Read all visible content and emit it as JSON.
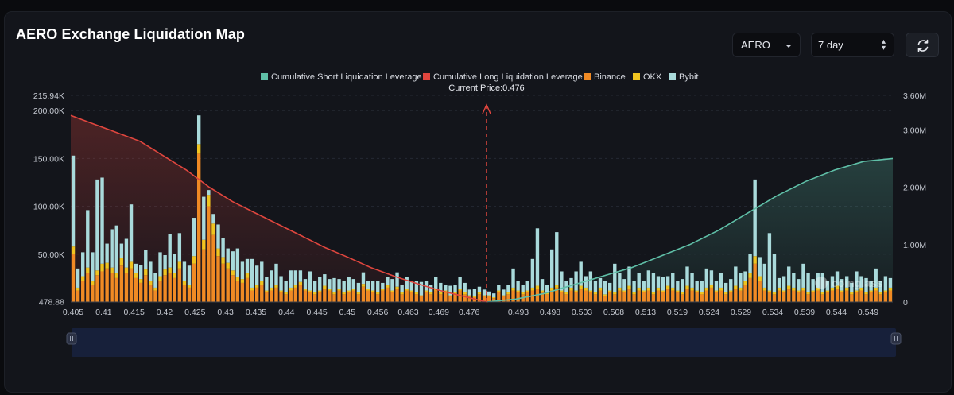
{
  "header": {
    "title": "AERO Exchange Liquidation Map",
    "symbol_select": "AERO",
    "range_select": "7 day"
  },
  "colors": {
    "short_line": "#5fbfa7",
    "long_line": "#e0463e",
    "binance": "#f08a24",
    "okx": "#f0c420",
    "bybit": "#a9dadb"
  },
  "chart_data": {
    "type": "bar",
    "legend": [
      {
        "key": "short",
        "label": "Cumulative Short Liquidation Leverage"
      },
      {
        "key": "long",
        "label": "Cumulative Long Liquidation Leverage"
      },
      {
        "key": "binance",
        "label": "Binance"
      },
      {
        "key": "okx",
        "label": "OKX"
      },
      {
        "key": "bybit",
        "label": "Bybit"
      }
    ],
    "current_price_label": "Current Price:0.476",
    "current_price": 0.476,
    "y_left": {
      "min": 478.88,
      "max": 215940,
      "ticks": [
        "478.88",
        "50.00K",
        "100.00K",
        "150.00K",
        "200.00K",
        "215.94K"
      ]
    },
    "y_right": {
      "min": 0,
      "max": 3600000,
      "ticks": [
        "0",
        "1.00M",
        "2.00M",
        "3.00M",
        "3.60M"
      ]
    },
    "x_tick_labels": [
      "0.405",
      "0.41",
      "0.415",
      "0.42",
      "0.425",
      "0.43",
      "0.435",
      "0.44",
      "0.445",
      "0.45",
      "0.456",
      "0.463",
      "0.469",
      "0.476",
      "0.493",
      "0.498",
      "0.503",
      "0.508",
      "0.513",
      "0.519",
      "0.524",
      "0.529",
      "0.534",
      "0.539",
      "0.544",
      "0.549"
    ],
    "long_tick_count": 14,
    "bar_count": 170,
    "bars_per_tick": 6.3,
    "bars_long_side": 88,
    "bars": {
      "binance": [
        50000,
        12000,
        22000,
        30000,
        18000,
        28000,
        32000,
        35000,
        30000,
        25000,
        38000,
        30000,
        35000,
        25000,
        20000,
        28000,
        18000,
        12000,
        22000,
        28000,
        30000,
        25000,
        35000,
        18000,
        15000,
        40000,
        155000,
        55000,
        100000,
        70000,
        48000,
        40000,
        35000,
        28000,
        22000,
        20000,
        25000,
        12000,
        15000,
        18000,
        10000,
        12000,
        15000,
        10000,
        8000,
        12000,
        15000,
        18000,
        12000,
        10000,
        8000,
        10000,
        14000,
        12000,
        8000,
        12000,
        8000,
        10000,
        12000,
        8000,
        16000,
        12000,
        10000,
        8000,
        12000,
        15000,
        10000,
        14000,
        8000,
        12000,
        10000,
        8000,
        6000,
        10000,
        8000,
        12000,
        8000,
        10000,
        6000,
        8000,
        12000,
        8000,
        6000,
        5000,
        8000,
        6000,
        6000,
        4000,
        10000,
        6000,
        8000,
        12000,
        10000,
        8000,
        10000,
        12000,
        14000,
        10000,
        8000,
        12000,
        15000,
        10000,
        8000,
        12000,
        10000,
        14000,
        12000,
        10000,
        8000,
        12000,
        6000,
        10000,
        8000,
        12000,
        10000,
        14000,
        8000,
        12000,
        10000,
        12000,
        8000,
        12000,
        10000,
        14000,
        12000,
        10000,
        8000,
        14000,
        12000,
        10000,
        8000,
        12000,
        15000,
        10000,
        12000,
        8000,
        10000,
        14000,
        12000,
        18000,
        25000,
        40000,
        22000,
        12000,
        10000,
        8000,
        12000,
        10000,
        14000,
        12000,
        10000,
        12000,
        8000,
        10000,
        12000,
        8000,
        10000,
        12000,
        14000,
        10000,
        12000,
        8000,
        10000,
        12000,
        8000,
        10000,
        12000,
        8000,
        10000,
        12000
      ],
      "okx": [
        8000,
        3000,
        5000,
        6000,
        4000,
        5000,
        8000,
        6000,
        6000,
        5000,
        8000,
        6000,
        7000,
        5000,
        4000,
        6000,
        4000,
        3000,
        5000,
        6000,
        6000,
        5000,
        7000,
        4000,
        3000,
        8000,
        10000,
        10000,
        12000,
        12000,
        8000,
        7000,
        6000,
        5000,
        4000,
        4000,
        5000,
        3000,
        3000,
        4000,
        2000,
        3000,
        3000,
        2000,
        2000,
        3000,
        3000,
        3000,
        2000,
        2000,
        2000,
        2000,
        3000,
        2000,
        2000,
        2000,
        2000,
        2000,
        2000,
        2000,
        3000,
        2000,
        2000,
        2000,
        2000,
        3000,
        2000,
        2000,
        2000,
        2000,
        2000,
        2000,
        1000,
        2000,
        2000,
        2000,
        2000,
        2000,
        1000,
        2000,
        2000,
        2000,
        1000,
        1000,
        2000,
        1000,
        1000,
        1000,
        2000,
        1000,
        2000,
        3000,
        2000,
        2000,
        2000,
        3000,
        3000,
        2000,
        2000,
        3000,
        3000,
        2000,
        2000,
        3000,
        2000,
        3000,
        3000,
        2000,
        2000,
        3000,
        2000,
        2000,
        2000,
        3000,
        2000,
        3000,
        2000,
        3000,
        2000,
        3000,
        2000,
        3000,
        2000,
        3000,
        3000,
        2000,
        2000,
        3000,
        3000,
        2000,
        2000,
        3000,
        3000,
        2000,
        3000,
        2000,
        2000,
        3000,
        3000,
        4000,
        5000,
        8000,
        5000,
        3000,
        2000,
        2000,
        3000,
        2000,
        3000,
        3000,
        2000,
        3000,
        2000,
        2000,
        3000,
        2000,
        2000,
        3000,
        3000,
        2000,
        3000,
        2000,
        2000,
        3000,
        2000,
        2000,
        3000,
        2000,
        2000,
        3000
      ],
      "bybit": [
        95000,
        20000,
        25000,
        60000,
        30000,
        95000,
        90000,
        20000,
        40000,
        50000,
        15000,
        30000,
        60000,
        10000,
        15000,
        20000,
        20000,
        15000,
        25000,
        15000,
        35000,
        20000,
        30000,
        20000,
        20000,
        40000,
        30000,
        45000,
        5000,
        10000,
        25000,
        20000,
        15000,
        20000,
        30000,
        18000,
        15000,
        30000,
        20000,
        20000,
        14000,
        18000,
        22000,
        15000,
        12000,
        18000,
        15000,
        12000,
        10000,
        20000,
        12000,
        14000,
        12000,
        10000,
        15000,
        10000,
        12000,
        14000,
        10000,
        10000,
        12000,
        8000,
        10000,
        12000,
        6000,
        8000,
        12000,
        15000,
        8000,
        12000,
        10000,
        12000,
        14000,
        10000,
        8000,
        12000,
        10000,
        6000,
        10000,
        8000,
        12000,
        10000,
        6000,
        8000,
        6000,
        6000,
        4000,
        4000,
        6000,
        6000,
        8000,
        20000,
        10000,
        8000,
        10000,
        30000,
        60000,
        12000,
        8000,
        40000,
        55000,
        20000,
        12000,
        10000,
        20000,
        25000,
        12000,
        20000,
        12000,
        10000,
        14000,
        8000,
        30000,
        15000,
        12000,
        20000,
        12000,
        15000,
        10000,
        18000,
        20000,
        12000,
        14000,
        10000,
        15000,
        10000,
        14000,
        20000,
        15000,
        10000,
        12000,
        20000,
        15000,
        10000,
        15000,
        10000,
        12000,
        20000,
        15000,
        10000,
        20000,
        80000,
        20000,
        25000,
        60000,
        40000,
        10000,
        15000,
        20000,
        15000,
        12000,
        25000,
        20000,
        12000,
        15000,
        20000,
        10000,
        12000,
        15000,
        12000,
        12000,
        10000,
        20000,
        12000,
        15000,
        10000,
        20000,
        12000,
        15000,
        10000,
        14000,
        12000
      ]
    },
    "cumulative_long_M": [
      3.25,
      3.1,
      2.95,
      2.8,
      2.55,
      2.3,
      2.0,
      1.75,
      1.55,
      1.35,
      1.15,
      0.95,
      0.78,
      0.6,
      0.45,
      0.32,
      0.2,
      0.1,
      0.0
    ],
    "cumulative_short_M": [
      0.0,
      0.05,
      0.15,
      0.3,
      0.45,
      0.6,
      0.8,
      1.0,
      1.25,
      1.55,
      1.85,
      2.1,
      2.3,
      2.45,
      2.5
    ]
  }
}
